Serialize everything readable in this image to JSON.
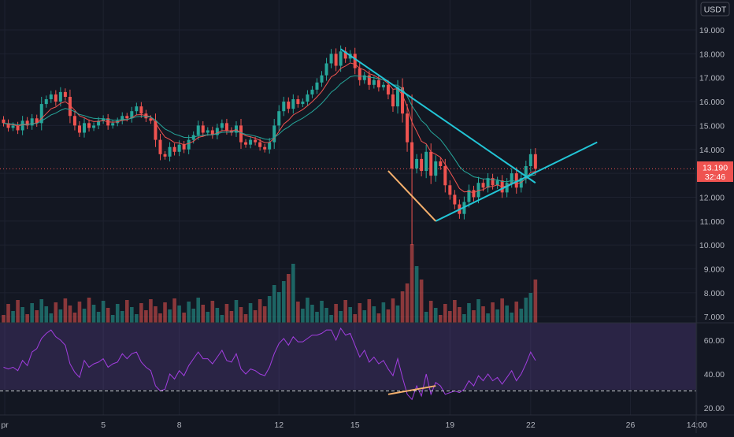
{
  "currency_label": "USDT",
  "colors": {
    "background": "#131722",
    "grid": "#1e2230",
    "axis_text": "#b2b5be",
    "up": "#26a69a",
    "down": "#ef5350",
    "ema_fast": "#ef5350",
    "ema_slow": "#26a69a",
    "trendline": "#22c5d6",
    "divergence": "#f5b06d",
    "rsi_line": "#a23ee0",
    "rsi_band": "rgba(126,87,194,0.22)",
    "price_line": "#ef5350"
  },
  "price_axis": {
    "ticks": [
      "19.000",
      "18.000",
      "17.000",
      "16.000",
      "15.000",
      "14.000",
      "13.000",
      "12.000",
      "11.000",
      "10.000",
      "9.000",
      "8.000",
      "7.000"
    ]
  },
  "rsi_axis": {
    "ticks": [
      "60.00",
      "40.00",
      "20.00"
    ]
  },
  "price_badge": {
    "value": "13.190",
    "countdown": "32:46"
  },
  "time_axis": {
    "labels": [
      "pr",
      "5",
      "8",
      "12",
      "15",
      "19",
      "22",
      "26",
      "14:00"
    ]
  },
  "chart_data": {
    "type": "candlestick",
    "instrument_quote": "USDT",
    "x_labels": [
      "pr",
      "5",
      "8",
      "12",
      "15",
      "19",
      "22",
      "26",
      "14:00"
    ],
    "price_range": [
      6.6,
      19.8
    ],
    "last_price": 13.19,
    "current_price_line": 13.19,
    "closes": [
      15.1,
      14.9,
      15.0,
      14.8,
      15.2,
      15.0,
      15.3,
      15.1,
      15.9,
      16.1,
      16.3,
      16.0,
      16.4,
      16.2,
      15.4,
      15.0,
      14.7,
      15.1,
      14.9,
      15.0,
      15.2,
      15.3,
      15.0,
      15.1,
      15.2,
      15.4,
      15.3,
      15.6,
      15.8,
      15.5,
      15.3,
      15.2,
      14.4,
      13.8,
      13.7,
      14.1,
      13.9,
      14.2,
      14.0,
      14.4,
      14.6,
      15.0,
      14.7,
      14.8,
      14.6,
      14.9,
      15.1,
      14.8,
      14.7,
      15.0,
      14.3,
      14.2,
      14.4,
      14.3,
      14.1,
      14.0,
      14.3,
      15.0,
      15.6,
      16.0,
      15.7,
      16.1,
      15.9,
      16.0,
      16.3,
      16.5,
      16.8,
      17.1,
      17.6,
      18.0,
      17.5,
      18.1,
      17.8,
      18.0,
      17.4,
      16.9,
      17.1,
      16.7,
      16.9,
      16.6,
      16.7,
      16.3,
      15.8,
      16.6,
      15.5,
      14.3,
      13.2,
      13.6,
      13.1,
      13.9,
      12.9,
      13.5,
      13.3,
      12.5,
      12.1,
      11.7,
      11.3,
      11.8,
      12.3,
      12.0,
      12.6,
      12.4,
      12.8,
      12.5,
      12.7,
      12.2,
      12.6,
      13.0,
      12.4,
      12.8,
      13.3,
      13.8,
      13.19
    ],
    "ema_fast_note": "short EMA (red)",
    "ema_slow_note": "longer EMA (teal)",
    "volume_scale_note": "volume bars overlay price pane bottom",
    "trendlines": [
      {
        "name": "descending_upper",
        "from": [
          71,
          18.2
        ],
        "to": [
          112,
          12.6
        ]
      },
      {
        "name": "ascending_lower",
        "from": [
          91,
          11.0
        ],
        "to": [
          125,
          14.3
        ]
      },
      {
        "name": "falling_lower",
        "from": [
          81,
          13.1
        ],
        "to": [
          91,
          11.0
        ]
      }
    ],
    "rsi": {
      "ylim": [
        15,
        70
      ],
      "reference_line": 30,
      "values": [
        44,
        43,
        44,
        42,
        48,
        45,
        53,
        55,
        61,
        64,
        66,
        62,
        60,
        57,
        46,
        41,
        38,
        48,
        44,
        46,
        47,
        49,
        44,
        46,
        47,
        52,
        49,
        52,
        53,
        47,
        44,
        42,
        33,
        30,
        31,
        40,
        37,
        42,
        39,
        45,
        49,
        53,
        49,
        49,
        46,
        50,
        54,
        48,
        47,
        52,
        43,
        40,
        43,
        42,
        40,
        39,
        44,
        52,
        58,
        61,
        57,
        62,
        59,
        59,
        61,
        63,
        63,
        64,
        66,
        66,
        60,
        67,
        63,
        64,
        57,
        50,
        54,
        47,
        50,
        46,
        48,
        43,
        39,
        49,
        38,
        28,
        25,
        33,
        27,
        40,
        28,
        35,
        33,
        28,
        29,
        30,
        29,
        31,
        36,
        33,
        39,
        36,
        40,
        36,
        38,
        34,
        38,
        42,
        36,
        40,
        46,
        53,
        48
      ],
      "divergence_line": {
        "from": [
          81,
          28
        ],
        "to": [
          91,
          33
        ]
      }
    }
  }
}
